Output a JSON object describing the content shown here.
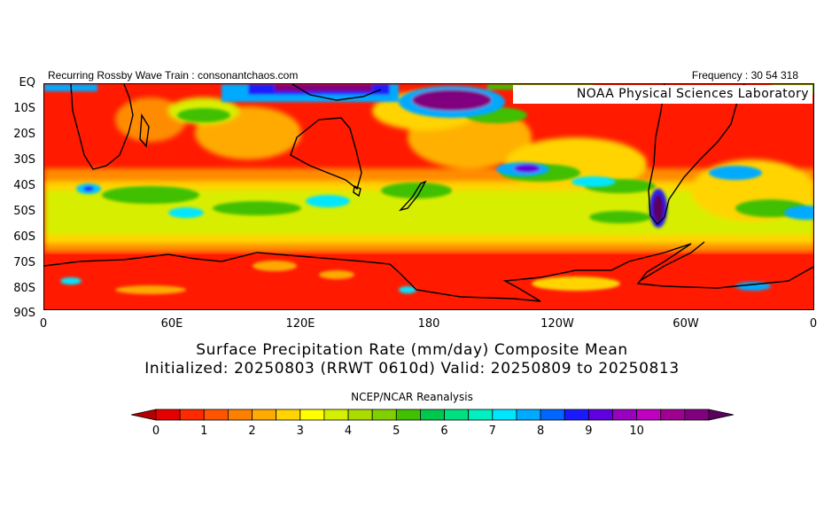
{
  "header": {
    "left_text": "Recurring Rossby Wave Train : consonantchaos.com",
    "right_text": "Frequency : 30 54 318"
  },
  "map": {
    "attribution": "NOAA Physical Sciences Laboratory",
    "y_axis_labels": [
      "EQ",
      "10S",
      "20S",
      "30S",
      "40S",
      "50S",
      "60S",
      "70S",
      "80S",
      "90S"
    ],
    "x_axis_labels": [
      "0",
      "60E",
      "120E",
      "180",
      "120W",
      "60W",
      "0"
    ],
    "lon_range": [
      0,
      360
    ],
    "lat_range": [
      0,
      -90
    ],
    "coastline_color": "#000000"
  },
  "title": {
    "line1": "Surface Precipitation Rate (mm/day) Composite Mean",
    "line2": "Initialized: 20250803 (RRWT 0610d) Valid: 20250809 to 20250813"
  },
  "source": "NCEP/NCAR Reanalysis",
  "colorbar": {
    "labels": [
      "0",
      "1",
      "2",
      "3",
      "4",
      "5",
      "6",
      "7",
      "8",
      "9",
      "10"
    ],
    "min": 0,
    "max": 10,
    "step": 0.5,
    "colors": [
      "#b40000",
      "#e60000",
      "#ff2a00",
      "#ff5500",
      "#ff8000",
      "#ffaa00",
      "#ffd400",
      "#ffff00",
      "#d4f000",
      "#aadc00",
      "#80d000",
      "#40c000",
      "#00c84c",
      "#00e080",
      "#00f0c0",
      "#00e6ff",
      "#00aaff",
      "#0066ff",
      "#1a1aff",
      "#6000e0",
      "#9a00c0",
      "#c000c0",
      "#a00090",
      "#800080",
      "#5c0060"
    ]
  }
}
